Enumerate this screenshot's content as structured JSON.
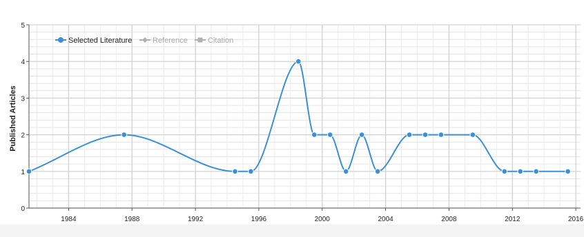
{
  "chart_data": {
    "type": "line",
    "ylabel": "Published Articles",
    "xlabel": "",
    "xlim": [
      1981.5,
      2016.3
    ],
    "ylim": [
      0,
      5
    ],
    "x_ticks": [
      1984,
      1988,
      1992,
      1996,
      2000,
      2004,
      2008,
      2012,
      2016
    ],
    "y_ticks": [
      0,
      1,
      2,
      3,
      4,
      5
    ],
    "grid": true,
    "legend": "top-left",
    "series": [
      {
        "name": "Selected Literature",
        "color": "#3a8fd6",
        "active": true,
        "x": [
          1981.5,
          1987.5,
          1994.5,
          1995.5,
          1998.5,
          1999.5,
          2000.5,
          2001.5,
          2002.5,
          2003.5,
          2005.5,
          2006.5,
          2007.5,
          2009.5,
          2011.5,
          2012.5,
          2013.5,
          2015.5
        ],
        "values": [
          1,
          2,
          1,
          1,
          4,
          2,
          2,
          1,
          2,
          1,
          2,
          2,
          2,
          2,
          1,
          1,
          1,
          1
        ]
      },
      {
        "name": "Reference",
        "color": "#b0b0b0",
        "active": false,
        "x": [],
        "values": []
      },
      {
        "name": "Citation",
        "color": "#b0b0b0",
        "active": false,
        "x": [],
        "values": []
      }
    ]
  }
}
